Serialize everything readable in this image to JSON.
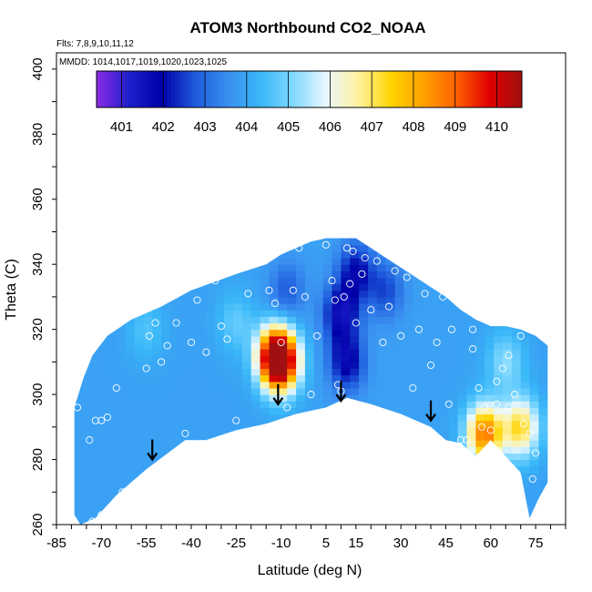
{
  "chart_data": {
    "type": "heatmap",
    "title": "ATOM3 Northbound CO2_NOAA",
    "flights_note": "Flts: 7,8,9,10,11,12",
    "dates_note": "MMDD: 1014,1017,1019,1020,1023,1025",
    "xlabel": "Latitude (deg N)",
    "ylabel": "Theta (C)",
    "xlim": [
      -85,
      85
    ],
    "ylim": [
      260,
      405
    ],
    "x_ticks": [
      -85,
      -70,
      -55,
      -40,
      -25,
      -10,
      5,
      15,
      30,
      45,
      60,
      75
    ],
    "y_ticks": [
      260,
      280,
      300,
      320,
      340,
      360,
      380,
      400
    ],
    "colorbar": {
      "ticks": [
        401,
        402,
        403,
        404,
        405,
        406,
        407,
        408,
        409,
        410
      ],
      "range": [
        400.4,
        410.6
      ],
      "colors": [
        "#8a2be2",
        "#1e1ecc",
        "#0000a8",
        "#1e5adc",
        "#3a8ff0",
        "#39b7f8",
        "#7fd8ff",
        "#e8f7ff",
        "#fff2a0",
        "#ffd400",
        "#ffa000",
        "#ff6000",
        "#e00000",
        "#a01010"
      ]
    },
    "field_boundary": {
      "upper": [
        [
          -79,
          296
        ],
        [
          -76,
          305
        ],
        [
          -73,
          312
        ],
        [
          -68,
          318
        ],
        [
          -60,
          323
        ],
        [
          -50,
          327
        ],
        [
          -40,
          332
        ],
        [
          -25,
          337
        ],
        [
          -15,
          340
        ],
        [
          -10,
          343
        ],
        [
          -5,
          345
        ],
        [
          0,
          347
        ],
        [
          5,
          348
        ],
        [
          10,
          348
        ],
        [
          15,
          348
        ],
        [
          20,
          345
        ],
        [
          25,
          342
        ],
        [
          30,
          339
        ],
        [
          35,
          336
        ],
        [
          40,
          333
        ],
        [
          45,
          330
        ],
        [
          50,
          326
        ],
        [
          55,
          323
        ],
        [
          60,
          321
        ],
        [
          65,
          321
        ],
        [
          70,
          320
        ],
        [
          75,
          318
        ],
        [
          79,
          315
        ]
      ],
      "lower": [
        [
          79,
          273
        ],
        [
          76,
          268
        ],
        [
          73,
          262
        ],
        [
          70,
          276
        ],
        [
          65,
          281
        ],
        [
          60,
          286
        ],
        [
          55,
          281
        ],
        [
          50,
          285
        ],
        [
          45,
          286
        ],
        [
          40,
          290
        ],
        [
          30,
          294
        ],
        [
          20,
          297
        ],
        [
          12,
          299
        ],
        [
          5,
          296
        ],
        [
          -5,
          294
        ],
        [
          -15,
          291
        ],
        [
          -25,
          289
        ],
        [
          -35,
          286
        ],
        [
          -42,
          286
        ],
        [
          -55,
          277
        ],
        [
          -65,
          269
        ],
        [
          -72,
          262
        ],
        [
          -77,
          260
        ],
        [
          -79,
          263
        ]
      ]
    },
    "field_anomalies": [
      {
        "lat": -12,
        "theta": 312,
        "co2": 409.0
      },
      {
        "lat": -10,
        "theta": 310,
        "co2": 409.2
      },
      {
        "lat": 58,
        "theta": 288,
        "co2": 408.8
      },
      {
        "lat": 70,
        "theta": 290,
        "co2": 407.3
      },
      {
        "lat": 10,
        "theta": 325,
        "co2": 401.6
      },
      {
        "lat": 12,
        "theta": 310,
        "co2": 401.8
      },
      {
        "lat": 15,
        "theta": 338,
        "co2": 402.0
      },
      {
        "lat": 25,
        "theta": 332,
        "co2": 402.6
      },
      {
        "lat": -8,
        "theta": 332,
        "co2": 402.8
      },
      {
        "lat": -25,
        "theta": 322,
        "co2": 404.8
      },
      {
        "lat": -55,
        "theta": 320,
        "co2": 404.6
      },
      {
        "lat": 65,
        "theta": 310,
        "co2": 405.2
      }
    ],
    "samples": [
      [
        -78,
        296
      ],
      [
        -75,
        311
      ],
      [
        -74,
        286
      ],
      [
        -72,
        292
      ],
      [
        -70,
        292
      ],
      [
        -68,
        293
      ],
      [
        -65,
        302
      ],
      [
        -70,
        263
      ],
      [
        -73,
        261
      ],
      [
        -63,
        270
      ],
      [
        -55,
        308
      ],
      [
        -54,
        318
      ],
      [
        -52,
        322
      ],
      [
        -50,
        310
      ],
      [
        -48,
        315
      ],
      [
        -45,
        322
      ],
      [
        -42,
        288
      ],
      [
        -40,
        316
      ],
      [
        -38,
        329
      ],
      [
        -35,
        313
      ],
      [
        -32,
        335
      ],
      [
        -30,
        321
      ],
      [
        -28,
        317
      ],
      [
        -25,
        292
      ],
      [
        -23,
        340
      ],
      [
        -21,
        331
      ],
      [
        -18,
        348
      ],
      [
        -16,
        344
      ],
      [
        -14,
        332
      ],
      [
        -12,
        328
      ],
      [
        -10,
        316
      ],
      [
        -8,
        296
      ],
      [
        -6,
        332
      ],
      [
        -4,
        345
      ],
      [
        -2,
        330
      ],
      [
        0,
        300
      ],
      [
        2,
        318
      ],
      [
        5,
        346
      ],
      [
        7,
        335
      ],
      [
        8,
        329
      ],
      [
        9,
        303
      ],
      [
        10,
        301
      ],
      [
        11,
        330
      ],
      [
        12,
        345
      ],
      [
        13,
        334
      ],
      [
        14,
        344
      ],
      [
        15,
        322
      ],
      [
        17,
        337
      ],
      [
        18,
        342
      ],
      [
        20,
        326
      ],
      [
        22,
        341
      ],
      [
        24,
        316
      ],
      [
        26,
        327
      ],
      [
        28,
        338
      ],
      [
        30,
        318
      ],
      [
        32,
        336
      ],
      [
        34,
        302
      ],
      [
        36,
        320
      ],
      [
        38,
        331
      ],
      [
        40,
        309
      ],
      [
        42,
        316
      ],
      [
        44,
        330
      ],
      [
        46,
        297
      ],
      [
        48,
        332
      ],
      [
        50,
        286
      ],
      [
        52,
        286
      ],
      [
        54,
        314
      ],
      [
        56,
        302
      ],
      [
        58,
        296
      ],
      [
        60,
        289
      ],
      [
        62,
        304
      ],
      [
        64,
        308
      ],
      [
        66,
        312
      ],
      [
        68,
        300
      ],
      [
        70,
        318
      ],
      [
        71,
        291
      ],
      [
        73,
        288
      ],
      [
        74,
        274
      ],
      [
        75,
        282
      ],
      [
        60,
        280
      ],
      [
        57,
        290
      ],
      [
        62,
        297
      ],
      [
        66,
        296
      ],
      [
        54,
        320
      ],
      [
        47,
        320
      ]
    ],
    "arrows": [
      [
        -53,
        280
      ],
      [
        -11,
        297
      ],
      [
        10,
        298
      ],
      [
        40,
        292
      ]
    ]
  }
}
